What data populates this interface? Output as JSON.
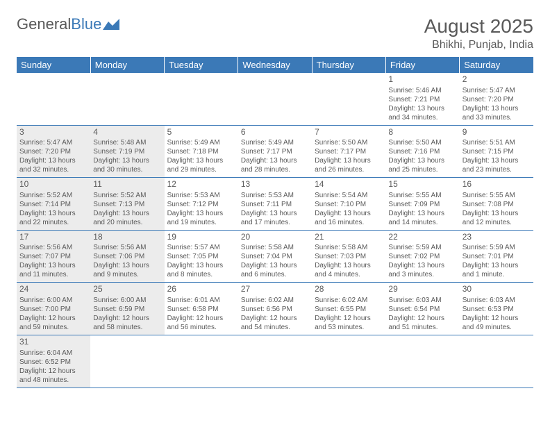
{
  "logo": {
    "text1": "General",
    "text2": "Blue"
  },
  "title": "August 2025",
  "location": "Bhikhi, Punjab, India",
  "colors": {
    "header_bg": "#3b79b7",
    "header_text": "#ffffff",
    "body_text": "#595959",
    "shaded_bg": "#ececec",
    "border": "#3b79b7"
  },
  "weekdays": [
    "Sunday",
    "Monday",
    "Tuesday",
    "Wednesday",
    "Thursday",
    "Friday",
    "Saturday"
  ],
  "shaded_cols": [
    0,
    1
  ],
  "rows": [
    [
      null,
      null,
      null,
      null,
      null,
      {
        "n": "1",
        "sr": "Sunrise: 5:46 AM",
        "ss": "Sunset: 7:21 PM",
        "d1": "Daylight: 13 hours",
        "d2": "and 34 minutes."
      },
      {
        "n": "2",
        "sr": "Sunrise: 5:47 AM",
        "ss": "Sunset: 7:20 PM",
        "d1": "Daylight: 13 hours",
        "d2": "and 33 minutes."
      }
    ],
    [
      {
        "n": "3",
        "sr": "Sunrise: 5:47 AM",
        "ss": "Sunset: 7:20 PM",
        "d1": "Daylight: 13 hours",
        "d2": "and 32 minutes."
      },
      {
        "n": "4",
        "sr": "Sunrise: 5:48 AM",
        "ss": "Sunset: 7:19 PM",
        "d1": "Daylight: 13 hours",
        "d2": "and 30 minutes."
      },
      {
        "n": "5",
        "sr": "Sunrise: 5:49 AM",
        "ss": "Sunset: 7:18 PM",
        "d1": "Daylight: 13 hours",
        "d2": "and 29 minutes."
      },
      {
        "n": "6",
        "sr": "Sunrise: 5:49 AM",
        "ss": "Sunset: 7:17 PM",
        "d1": "Daylight: 13 hours",
        "d2": "and 28 minutes."
      },
      {
        "n": "7",
        "sr": "Sunrise: 5:50 AM",
        "ss": "Sunset: 7:17 PM",
        "d1": "Daylight: 13 hours",
        "d2": "and 26 minutes."
      },
      {
        "n": "8",
        "sr": "Sunrise: 5:50 AM",
        "ss": "Sunset: 7:16 PM",
        "d1": "Daylight: 13 hours",
        "d2": "and 25 minutes."
      },
      {
        "n": "9",
        "sr": "Sunrise: 5:51 AM",
        "ss": "Sunset: 7:15 PM",
        "d1": "Daylight: 13 hours",
        "d2": "and 23 minutes."
      }
    ],
    [
      {
        "n": "10",
        "sr": "Sunrise: 5:52 AM",
        "ss": "Sunset: 7:14 PM",
        "d1": "Daylight: 13 hours",
        "d2": "and 22 minutes."
      },
      {
        "n": "11",
        "sr": "Sunrise: 5:52 AM",
        "ss": "Sunset: 7:13 PM",
        "d1": "Daylight: 13 hours",
        "d2": "and 20 minutes."
      },
      {
        "n": "12",
        "sr": "Sunrise: 5:53 AM",
        "ss": "Sunset: 7:12 PM",
        "d1": "Daylight: 13 hours",
        "d2": "and 19 minutes."
      },
      {
        "n": "13",
        "sr": "Sunrise: 5:53 AM",
        "ss": "Sunset: 7:11 PM",
        "d1": "Daylight: 13 hours",
        "d2": "and 17 minutes."
      },
      {
        "n": "14",
        "sr": "Sunrise: 5:54 AM",
        "ss": "Sunset: 7:10 PM",
        "d1": "Daylight: 13 hours",
        "d2": "and 16 minutes."
      },
      {
        "n": "15",
        "sr": "Sunrise: 5:55 AM",
        "ss": "Sunset: 7:09 PM",
        "d1": "Daylight: 13 hours",
        "d2": "and 14 minutes."
      },
      {
        "n": "16",
        "sr": "Sunrise: 5:55 AM",
        "ss": "Sunset: 7:08 PM",
        "d1": "Daylight: 13 hours",
        "d2": "and 12 minutes."
      }
    ],
    [
      {
        "n": "17",
        "sr": "Sunrise: 5:56 AM",
        "ss": "Sunset: 7:07 PM",
        "d1": "Daylight: 13 hours",
        "d2": "and 11 minutes."
      },
      {
        "n": "18",
        "sr": "Sunrise: 5:56 AM",
        "ss": "Sunset: 7:06 PM",
        "d1": "Daylight: 13 hours",
        "d2": "and 9 minutes."
      },
      {
        "n": "19",
        "sr": "Sunrise: 5:57 AM",
        "ss": "Sunset: 7:05 PM",
        "d1": "Daylight: 13 hours",
        "d2": "and 8 minutes."
      },
      {
        "n": "20",
        "sr": "Sunrise: 5:58 AM",
        "ss": "Sunset: 7:04 PM",
        "d1": "Daylight: 13 hours",
        "d2": "and 6 minutes."
      },
      {
        "n": "21",
        "sr": "Sunrise: 5:58 AM",
        "ss": "Sunset: 7:03 PM",
        "d1": "Daylight: 13 hours",
        "d2": "and 4 minutes."
      },
      {
        "n": "22",
        "sr": "Sunrise: 5:59 AM",
        "ss": "Sunset: 7:02 PM",
        "d1": "Daylight: 13 hours",
        "d2": "and 3 minutes."
      },
      {
        "n": "23",
        "sr": "Sunrise: 5:59 AM",
        "ss": "Sunset: 7:01 PM",
        "d1": "Daylight: 13 hours",
        "d2": "and 1 minute."
      }
    ],
    [
      {
        "n": "24",
        "sr": "Sunrise: 6:00 AM",
        "ss": "Sunset: 7:00 PM",
        "d1": "Daylight: 12 hours",
        "d2": "and 59 minutes."
      },
      {
        "n": "25",
        "sr": "Sunrise: 6:00 AM",
        "ss": "Sunset: 6:59 PM",
        "d1": "Daylight: 12 hours",
        "d2": "and 58 minutes."
      },
      {
        "n": "26",
        "sr": "Sunrise: 6:01 AM",
        "ss": "Sunset: 6:58 PM",
        "d1": "Daylight: 12 hours",
        "d2": "and 56 minutes."
      },
      {
        "n": "27",
        "sr": "Sunrise: 6:02 AM",
        "ss": "Sunset: 6:56 PM",
        "d1": "Daylight: 12 hours",
        "d2": "and 54 minutes."
      },
      {
        "n": "28",
        "sr": "Sunrise: 6:02 AM",
        "ss": "Sunset: 6:55 PM",
        "d1": "Daylight: 12 hours",
        "d2": "and 53 minutes."
      },
      {
        "n": "29",
        "sr": "Sunrise: 6:03 AM",
        "ss": "Sunset: 6:54 PM",
        "d1": "Daylight: 12 hours",
        "d2": "and 51 minutes."
      },
      {
        "n": "30",
        "sr": "Sunrise: 6:03 AM",
        "ss": "Sunset: 6:53 PM",
        "d1": "Daylight: 12 hours",
        "d2": "and 49 minutes."
      }
    ],
    [
      {
        "n": "31",
        "sr": "Sunrise: 6:04 AM",
        "ss": "Sunset: 6:52 PM",
        "d1": "Daylight: 12 hours",
        "d2": "and 48 minutes."
      },
      null,
      null,
      null,
      null,
      null,
      null
    ]
  ]
}
